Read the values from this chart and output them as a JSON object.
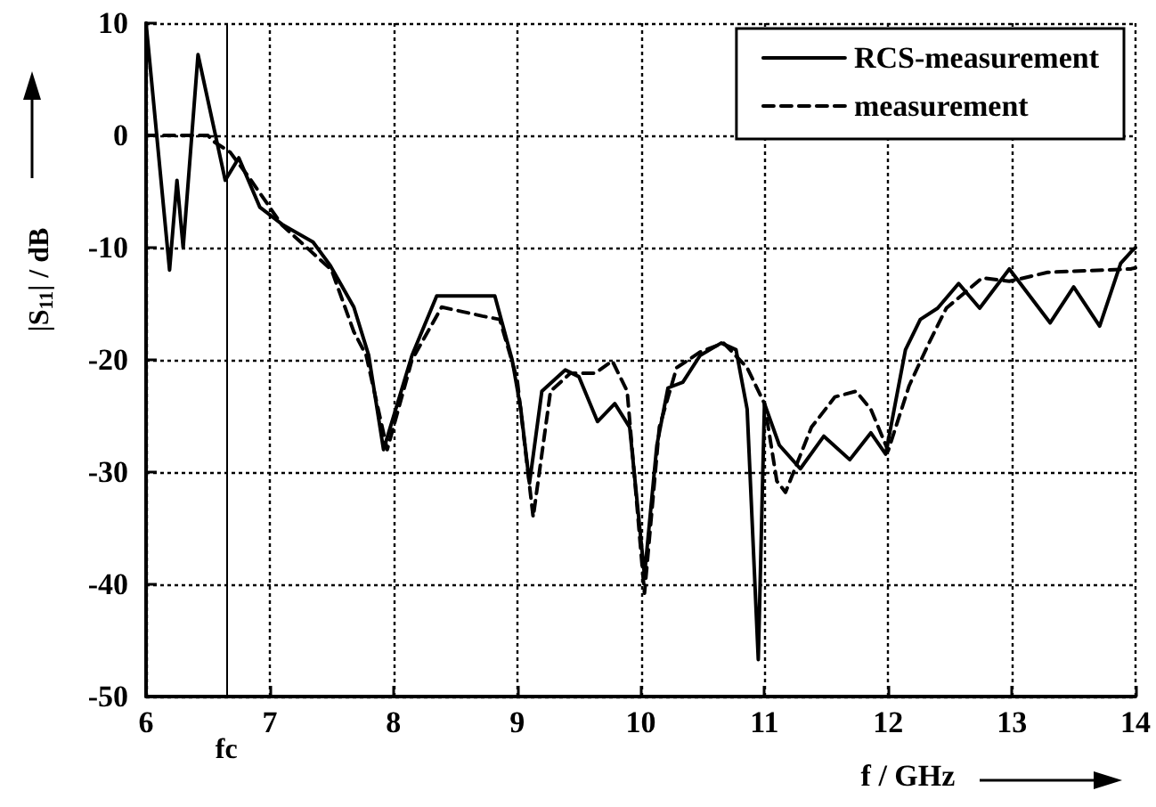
{
  "chart_data": {
    "type": "line",
    "xlabel": "f / GHz",
    "ylabel": "|S$_{11}$| / dB",
    "xlim": [
      6,
      14
    ],
    "xticks": [
      6,
      7,
      8,
      9,
      10,
      11,
      12,
      13,
      14
    ],
    "ylim": [
      -50,
      10
    ],
    "yticks": [
      -50,
      -40,
      -30,
      -20,
      -10,
      0,
      10
    ],
    "grid": true,
    "legend": "top right",
    "marker": "none",
    "ref_lines": [
      {
        "axis": "x",
        "value": 6.65,
        "label": "fc",
        "color": "#000000",
        "line_style": "solid"
      }
    ],
    "series": [
      {
        "name": "RCS-measurement",
        "color": "#000000",
        "line_style": "solid",
        "x": [
          6.0,
          6.19,
          6.25,
          6.3,
          6.42,
          6.64,
          6.75,
          6.92,
          7.11,
          7.35,
          7.49,
          7.68,
          7.8,
          7.92,
          8.15,
          8.35,
          8.82,
          8.96,
          9.03,
          9.1,
          9.2,
          9.39,
          9.5,
          9.65,
          9.79,
          9.91,
          10.03,
          10.13,
          10.22,
          10.34,
          10.48,
          10.65,
          10.77,
          10.86,
          10.95,
          11.0,
          11.12,
          11.29,
          11.48,
          11.69,
          11.86,
          11.98,
          12.14,
          12.26,
          12.4,
          12.57,
          12.74,
          12.98,
          13.31,
          13.5,
          13.71,
          13.88,
          13.97,
          14.0
        ],
        "values": [
          10,
          -12,
          -4,
          -10,
          7.2,
          -4,
          -2,
          -6.4,
          -8,
          -9.5,
          -11.6,
          -15.3,
          -19.6,
          -28,
          -19.6,
          -14.3,
          -14.3,
          -20,
          -24.4,
          -31,
          -22.8,
          -20.9,
          -21.5,
          -25.5,
          -23.9,
          -26,
          -39.2,
          -27.6,
          -22.5,
          -22,
          -19.6,
          -18.5,
          -19.1,
          -24.4,
          -46.7,
          -23.9,
          -27.6,
          -29.7,
          -26.8,
          -28.9,
          -26.5,
          -28.4,
          -19.1,
          -16.4,
          -15.4,
          -13.2,
          -15.4,
          -11.9,
          -16.7,
          -13.5,
          -17,
          -11.4,
          -10.3,
          -10
        ]
      },
      {
        "name": "measurement",
        "color": "#000000",
        "line_style": "dashed",
        "x": [
          6.0,
          6.5,
          6.54,
          6.68,
          6.83,
          7.1,
          7.5,
          7.68,
          7.78,
          7.95,
          8.15,
          8.39,
          8.72,
          8.86,
          9.0,
          9.13,
          9.27,
          9.43,
          9.63,
          9.77,
          9.89,
          10.03,
          10.15,
          10.29,
          10.48,
          10.67,
          10.86,
          11.0,
          11.1,
          11.17,
          11.38,
          11.57,
          11.74,
          11.86,
          12.0,
          12.17,
          12.33,
          12.47,
          12.76,
          12.98,
          13.29,
          13.96,
          14.0
        ],
        "values": [
          0,
          0,
          -0.5,
          -1.5,
          -3.7,
          -8,
          -12,
          -17.5,
          -19.6,
          -28,
          -20,
          -15.3,
          -16.1,
          -16.4,
          -21.7,
          -34,
          -22.8,
          -21.2,
          -21.2,
          -20.1,
          -22.8,
          -40.8,
          -26,
          -20.7,
          -19.3,
          -18.5,
          -20.7,
          -23.9,
          -30.8,
          -31.8,
          -26,
          -23.3,
          -22.8,
          -24.4,
          -28.1,
          -22.3,
          -18.5,
          -15.4,
          -12.7,
          -13,
          -12.2,
          -11.9,
          -11.8
        ]
      }
    ]
  }
}
